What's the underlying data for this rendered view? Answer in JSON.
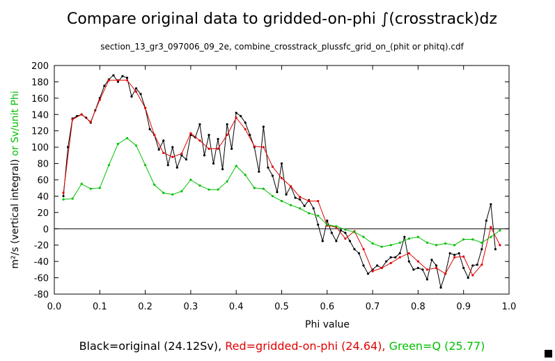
{
  "chart_data": {
    "type": "line",
    "title": "Compare original data to gridded-on-phi ∫(crosstrack)dz",
    "subtitle": "section_13_gr3_097006_09_2e, combine_crosstrack_plussfc_grid_on_(phit or phitq).cdf",
    "x_label": "Phi value",
    "y_label": "m²/s (vertical integral)",
    "y_label_2": " or Sv/unit Phi",
    "xlim": [
      0,
      1
    ],
    "ylim": [
      -80,
      200
    ],
    "xticks": [
      {
        "value": 0,
        "label": "0.0"
      },
      0.1,
      0.2,
      0.3,
      0.4,
      0.5,
      0.6,
      0.7,
      0.8,
      0.9,
      {
        "value": 1,
        "label": "1.0"
      }
    ],
    "yticks": [
      -80,
      -60,
      -40,
      -20,
      0,
      20,
      40,
      60,
      80,
      100,
      120,
      140,
      160,
      180,
      200
    ],
    "series": [
      {
        "name": "Black=original (24.12Sv),",
        "color": "#000000",
        "x": [
          0.02,
          0.03,
          0.04,
          0.05,
          0.06,
          0.07,
          0.08,
          0.09,
          0.1,
          0.11,
          0.12,
          0.13,
          0.14,
          0.15,
          0.16,
          0.17,
          0.18,
          0.19,
          0.2,
          0.21,
          0.22,
          0.23,
          0.24,
          0.25,
          0.26,
          0.27,
          0.28,
          0.29,
          0.3,
          0.31,
          0.32,
          0.33,
          0.34,
          0.35,
          0.36,
          0.37,
          0.38,
          0.39,
          0.4,
          0.41,
          0.42,
          0.43,
          0.44,
          0.45,
          0.46,
          0.47,
          0.48,
          0.49,
          0.5,
          0.51,
          0.52,
          0.53,
          0.54,
          0.55,
          0.56,
          0.57,
          0.58,
          0.59,
          0.6,
          0.61,
          0.62,
          0.63,
          0.64,
          0.65,
          0.66,
          0.67,
          0.68,
          0.69,
          0.7,
          0.71,
          0.72,
          0.73,
          0.74,
          0.75,
          0.76,
          0.77,
          0.78,
          0.79,
          0.8,
          0.81,
          0.82,
          0.83,
          0.84,
          0.85,
          0.86,
          0.87,
          0.88,
          0.89,
          0.9,
          0.91,
          0.92,
          0.93,
          0.94,
          0.95,
          0.96,
          0.97
        ],
        "values": [
          40,
          100,
          135,
          138,
          140,
          136,
          130,
          145,
          160,
          175,
          183,
          188,
          180,
          187,
          185,
          162,
          172,
          165,
          148,
          122,
          115,
          97,
          108,
          78,
          100,
          75,
          90,
          85,
          115,
          112,
          128,
          90,
          115,
          80,
          110,
          73,
          128,
          98,
          142,
          138,
          130,
          115,
          100,
          70,
          125,
          75,
          65,
          45,
          80,
          42,
          52,
          38,
          36,
          28,
          35,
          25,
          5,
          -15,
          10,
          -5,
          -15,
          -2,
          -5,
          -15,
          -25,
          -30,
          -45,
          -55,
          -50,
          -45,
          -48,
          -40,
          -35,
          -35,
          -30,
          -10,
          -40,
          -50,
          -48,
          -50,
          -62,
          -38,
          -45,
          -72,
          -55,
          -30,
          -32,
          -30,
          -48,
          -60,
          -45,
          -44,
          -25,
          10,
          30,
          -25
        ]
      },
      {
        "name": "Red=gridded-on-phi (24.64),",
        "color": "#e00000",
        "x": [
          0.02,
          0.04,
          0.06,
          0.08,
          0.1,
          0.12,
          0.14,
          0.16,
          0.18,
          0.2,
          0.22,
          0.24,
          0.26,
          0.28,
          0.3,
          0.32,
          0.34,
          0.36,
          0.38,
          0.4,
          0.42,
          0.44,
          0.46,
          0.48,
          0.5,
          0.52,
          0.54,
          0.56,
          0.58,
          0.6,
          0.62,
          0.64,
          0.66,
          0.68,
          0.7,
          0.72,
          0.74,
          0.76,
          0.78,
          0.8,
          0.82,
          0.84,
          0.86,
          0.88,
          0.9,
          0.92,
          0.94,
          0.96,
          0.98
        ],
        "values": [
          44,
          134,
          140,
          131,
          158,
          182,
          182,
          182,
          168,
          148,
          115,
          93,
          88,
          92,
          117,
          108,
          98,
          98,
          115,
          136,
          122,
          101,
          100,
          76,
          62,
          52,
          39,
          34,
          34,
          4,
          2,
          -12,
          -3,
          -25,
          -52,
          -48,
          -42,
          -35,
          -30,
          -40,
          -50,
          -48,
          -55,
          -35,
          -34,
          -57,
          -44,
          2,
          -20
        ]
      },
      {
        "name": "Green=Q (25.77)",
        "color": "#00c000",
        "x": [
          0.02,
          0.04,
          0.06,
          0.08,
          0.1,
          0.12,
          0.14,
          0.16,
          0.18,
          0.2,
          0.22,
          0.24,
          0.26,
          0.28,
          0.3,
          0.32,
          0.34,
          0.36,
          0.38,
          0.4,
          0.42,
          0.44,
          0.46,
          0.48,
          0.5,
          0.52,
          0.54,
          0.56,
          0.58,
          0.6,
          0.62,
          0.64,
          0.66,
          0.68,
          0.7,
          0.72,
          0.74,
          0.76,
          0.78,
          0.8,
          0.82,
          0.84,
          0.86,
          0.88,
          0.9,
          0.92,
          0.94,
          0.96,
          0.98
        ],
        "values": [
          36,
          37,
          55,
          49,
          50,
          78,
          104,
          111,
          102,
          78,
          54,
          44,
          42,
          46,
          60,
          53,
          48,
          48,
          58,
          77,
          66,
          50,
          49,
          40,
          34,
          29,
          25,
          19,
          16,
          5,
          3,
          -1,
          -4,
          -10,
          -18,
          -22,
          -20,
          -17,
          -12,
          -10,
          -17,
          -20,
          -18,
          -20,
          -13,
          -13,
          -17,
          -10,
          -2
        ]
      }
    ]
  }
}
